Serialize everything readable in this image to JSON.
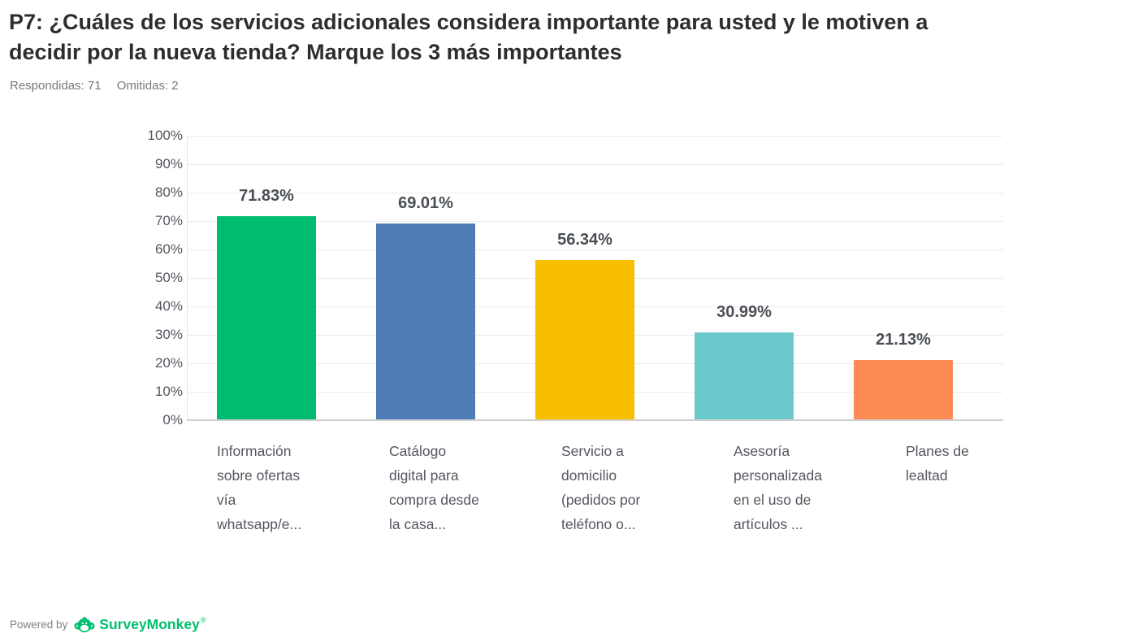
{
  "header": {
    "title": "P7: ¿Cuáles de los servicios adicionales considera importante para usted y le motiven a decidir por la nueva tienda? Marque los 3 más importantes",
    "responded_label": "Respondidas: 71",
    "omitted_label": "Omitidas: 2"
  },
  "chart_data": {
    "type": "bar",
    "title": "",
    "xlabel": "",
    "ylabel": "",
    "ylim": [
      0,
      100
    ],
    "grid": true,
    "legend": false,
    "y_ticks": [
      "100%",
      "90%",
      "80%",
      "70%",
      "60%",
      "50%",
      "40%",
      "30%",
      "20%",
      "10%",
      "0%"
    ],
    "categories": [
      "Información sobre ofertas vía whatsapp/e...",
      "Catálogo digital para compra desde la casa...",
      "Servicio a domicilio (pedidos por teléfono o...",
      "Asesoría personalizada en el uso de artículos ...",
      "Planes de lealtad"
    ],
    "categories_display": [
      "Información\nsobre ofertas\nvía\nwhatsapp/e...",
      "Catálogo\ndigital para\ncompra desde\nla casa...",
      "Servicio a\ndomicilio\n(pedidos por\nteléfono o...",
      "Asesoría\npersonalizada\nen el uso de\nartículos ...",
      "Planes de\nlealtad"
    ],
    "values": [
      71.83,
      69.01,
      56.34,
      30.99,
      21.13
    ],
    "value_labels": [
      "71.83%",
      "69.01%",
      "56.34%",
      "30.99%",
      "21.13%"
    ],
    "bar_colors": [
      "#00bc70",
      "#4f7db8",
      "#f7bf00",
      "#6bc8cd",
      "#fc8b54"
    ]
  },
  "footer": {
    "powered_by": "Powered by",
    "brand": "SurveyMonkey",
    "registered_mark": "®",
    "brand_color": "#00bf6f"
  }
}
